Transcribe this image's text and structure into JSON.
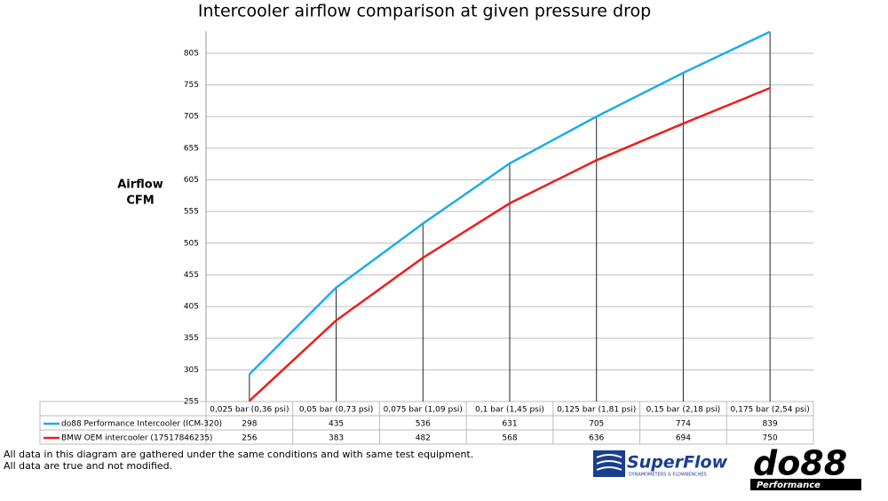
{
  "chart_data": {
    "type": "line",
    "title": "Intercooler airflow comparison at given pressure drop",
    "y_label": [
      "Airflow",
      "CFM"
    ],
    "categories": [
      "0,025 bar (0,36 psi)",
      "0,05 bar (0,73 psi)",
      "0,075 bar (1,09 psi)",
      "0,1 bar (1,45 psi)",
      "0,125 bar (1,81 psi)",
      "0,15 bar (2,18 psi)",
      "0,175 bar (2,54 psi)"
    ],
    "series": [
      {
        "name": "do88 Performance Intercooler (ICM-320)",
        "color": "#1aaee8",
        "values": [
          298,
          435,
          536,
          631,
          705,
          774,
          839
        ]
      },
      {
        "name": "BMW OEM intercooler (17517846235)",
        "color": "#ee1c1c",
        "values": [
          256,
          383,
          482,
          568,
          636,
          694,
          750
        ]
      }
    ],
    "ylim": [
      255,
      840
    ],
    "yticks": [
      255,
      305,
      355,
      405,
      455,
      505,
      555,
      605,
      655,
      705,
      755,
      805
    ],
    "grid": true,
    "drop_lines": true
  },
  "footer": [
    "All data in this diagram are gathered under the same conditions and with same test equipment.",
    "All data are true and not modified."
  ],
  "logos": {
    "superflow": "SuperFlow",
    "superflow_tagline": "DYNAMOMETERS & FLOWBENCHES",
    "do88": "do88",
    "do88_sub": "Performance"
  }
}
